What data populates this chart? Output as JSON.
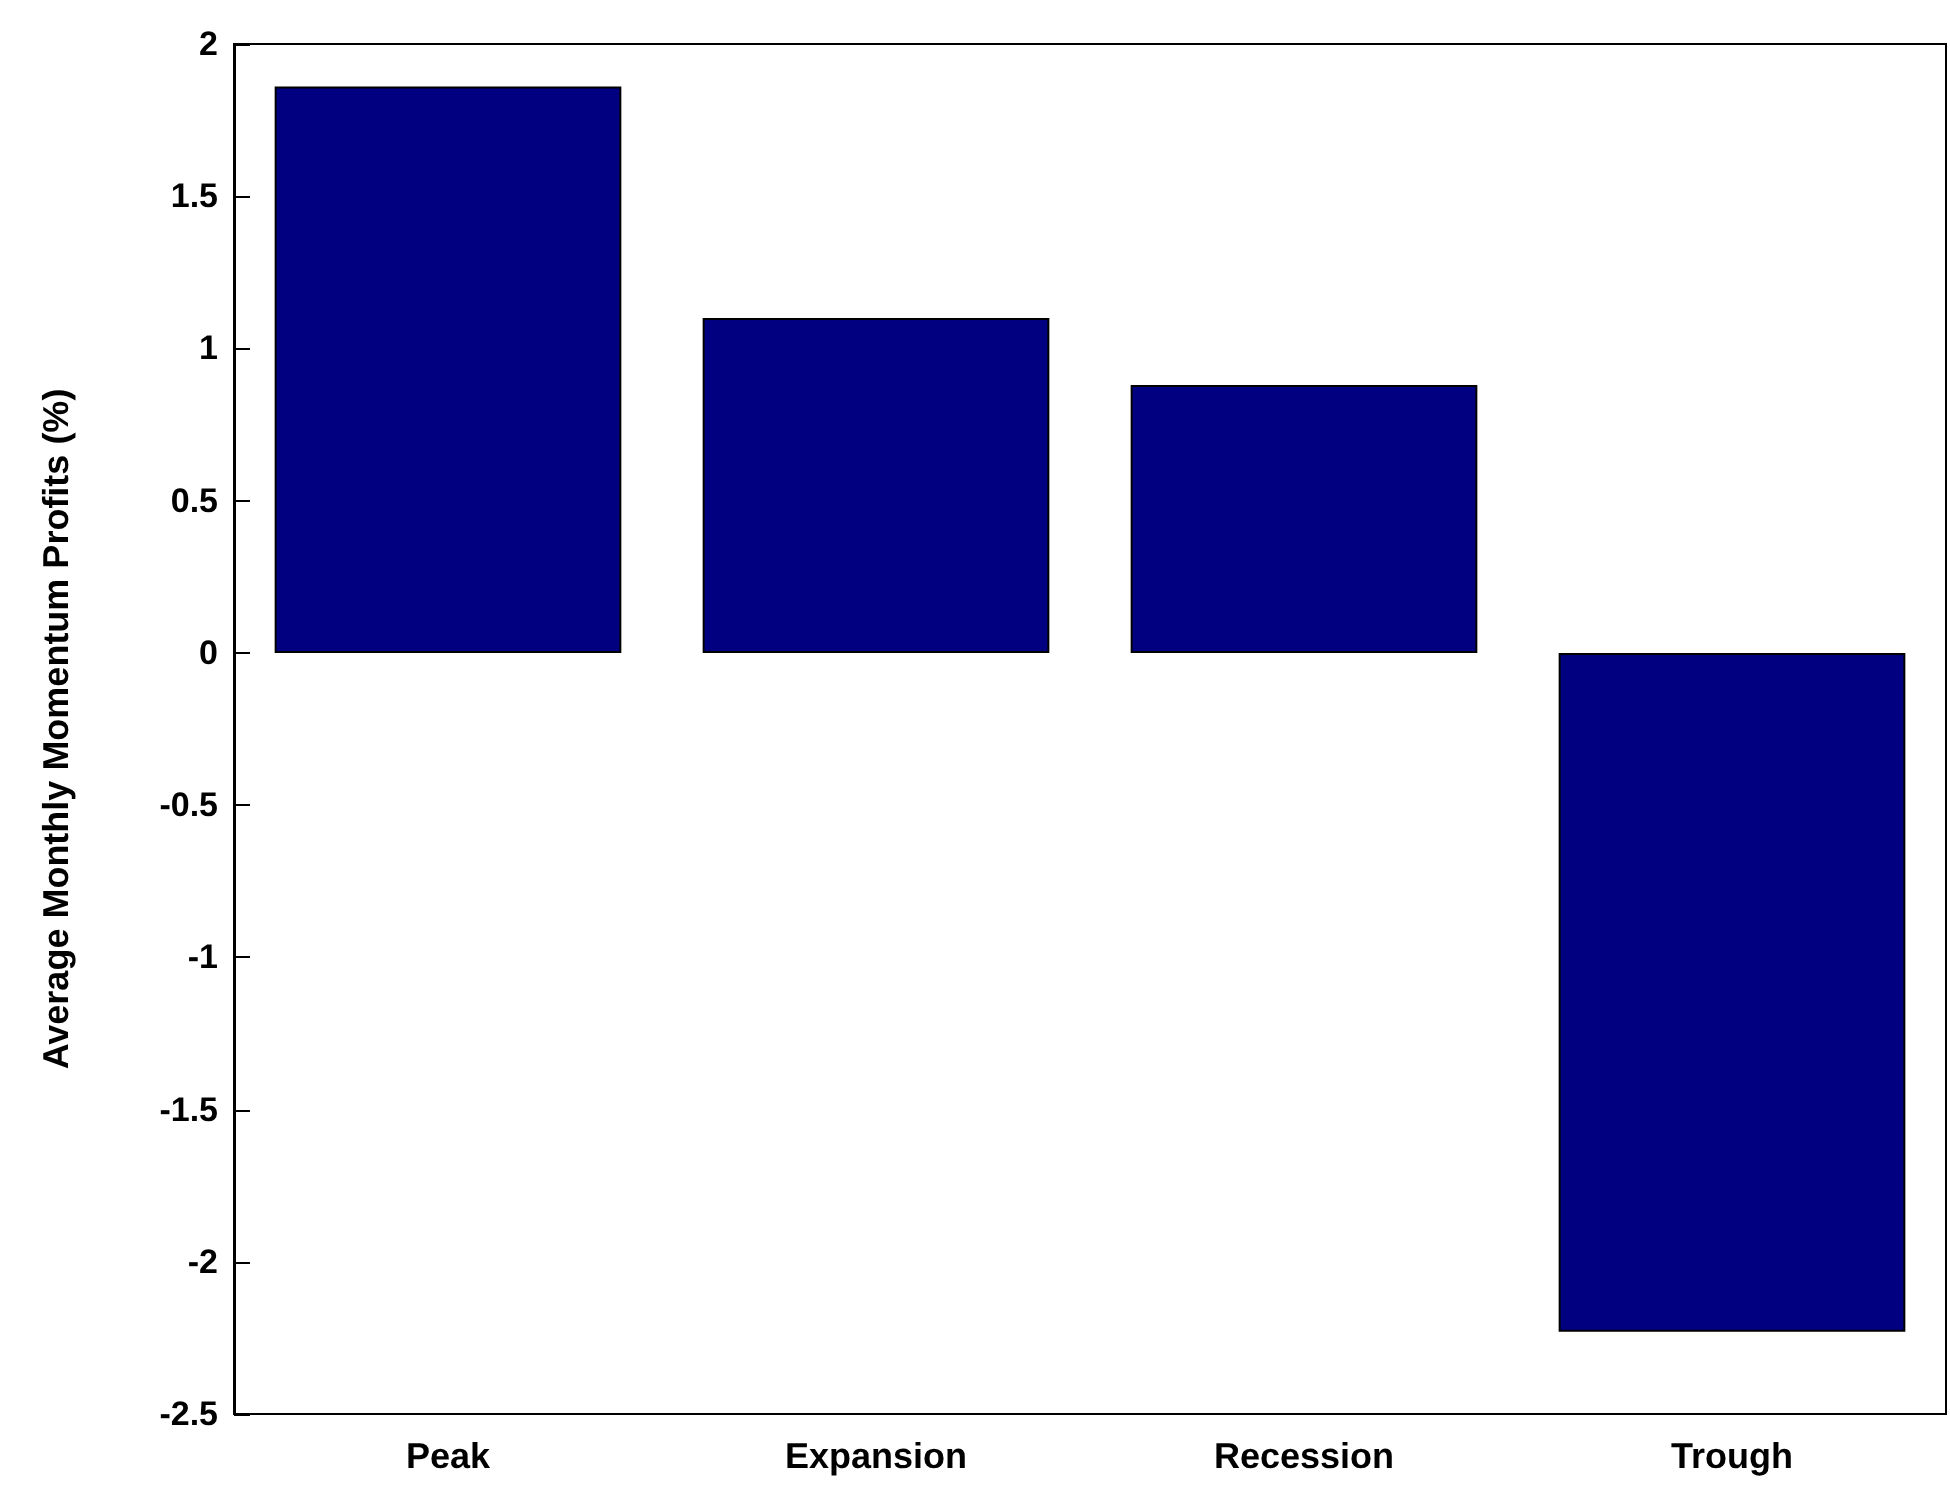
{
  "chart_data": {
    "type": "bar",
    "ylabel": "Average Monthly Momentum Profits (%)",
    "categories": [
      "Peak",
      "Expansion",
      "Recession",
      "Trough"
    ],
    "values": [
      1.86,
      1.1,
      0.88,
      -2.23
    ],
    "color": "#000080",
    "ylim": [
      -2.5,
      2
    ],
    "yticks": [
      -2.5,
      -2,
      -1.5,
      -1,
      -0.5,
      0,
      0.5,
      1,
      1.5,
      2
    ],
    "grid": false
  }
}
